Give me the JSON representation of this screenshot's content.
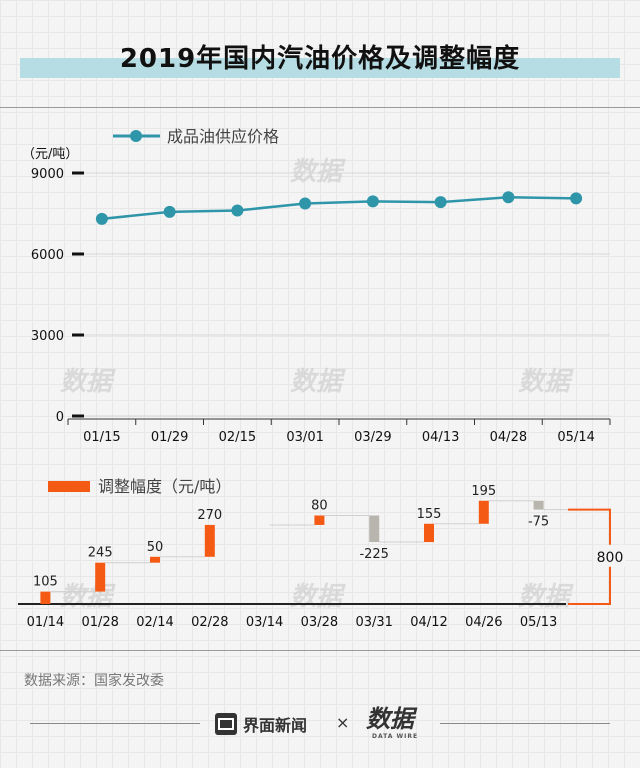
{
  "title": "2019年国内汽油价格及调整幅度",
  "colors": {
    "line": "#2f96aa",
    "increase": "#f45a14",
    "decrease": "#b7b5ae",
    "title_band": "#b7dde4"
  },
  "chart_data": [
    {
      "type": "line",
      "legend": "成品油供应价格",
      "ylabel": "（元/吨）",
      "ylim": [
        0,
        9000
      ],
      "yticks": [
        "0",
        "3000",
        "6000",
        "9000"
      ],
      "categories": [
        "01/15",
        "01/29",
        "02/15",
        "03/01",
        "03/29",
        "04/13",
        "04/28",
        "05/14"
      ],
      "series": [
        {
          "name": "成品油供应价格",
          "values": [
            7300,
            7560,
            7610,
            7870,
            7950,
            7920,
            8100,
            8060
          ]
        }
      ]
    },
    {
      "type": "bar",
      "subtype": "waterfall",
      "legend": "调整幅度（元/吨）",
      "categories": [
        "01/14",
        "01/28",
        "02/14",
        "02/28",
        "03/14",
        "03/28",
        "03/31",
        "04/12",
        "04/26",
        "05/13"
      ],
      "values": [
        105,
        245,
        50,
        270,
        null,
        80,
        -225,
        155,
        195,
        -75
      ],
      "value_labels": [
        "105",
        "245",
        "50",
        "270",
        "",
        "80",
        "-225",
        "155",
        "195",
        "-75"
      ],
      "total_label": "800"
    }
  ],
  "source": "数据来源：国家发改委",
  "footer": {
    "brand": "界面新闻",
    "separator": "×",
    "logo": "数据",
    "logo_sub": "DATA WIRE"
  }
}
